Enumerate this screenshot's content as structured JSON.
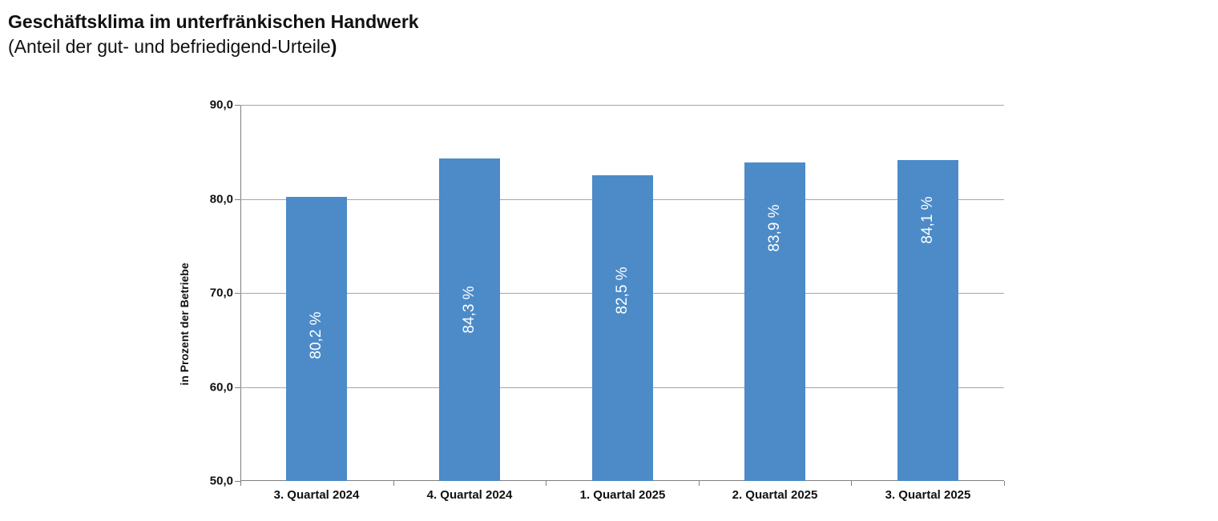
{
  "header": {
    "title": "Geschäftsklima im unterfränkischen Handwerk",
    "subtitle": "(Anteil der gut- und befriedigend-Urteile",
    "subtitle_suffix": ")"
  },
  "chart_data": {
    "type": "bar",
    "title": "Geschäftsklima im unterfränkischen Handwerk",
    "subtitle": "(Anteil der gut- und befriedigend-Urteile)",
    "categories": [
      "3. Quartal 2024",
      "4. Quartal 2024",
      "1. Quartal 2025",
      "2. Quartal 2025",
      "3. Quartal 2025"
    ],
    "values": [
      80.2,
      84.3,
      82.5,
      83.9,
      84.1
    ],
    "value_labels": [
      "80,2 %",
      "84,3 %",
      "82,5 %",
      "83,9 %",
      "84,1 %"
    ],
    "xlabel": "",
    "ylabel": "in Prozent der Betriebe",
    "ylim": [
      50,
      90
    ],
    "yticks": [
      50,
      60,
      70,
      80,
      90
    ],
    "ytick_labels": [
      "50,0",
      "60,0",
      "70,0",
      "80,0",
      "90,0"
    ],
    "grid": true,
    "legend": false,
    "value_label_rotation_deg": -90,
    "value_label_position": "inside"
  },
  "colors": {
    "bar_fill": "#4C8BC8",
    "value_label_text": "#FFFFFF",
    "gridline": "#A6A6A6",
    "axis_line": "#7F7F7F",
    "text": "#111111",
    "background": "#FFFFFF"
  }
}
